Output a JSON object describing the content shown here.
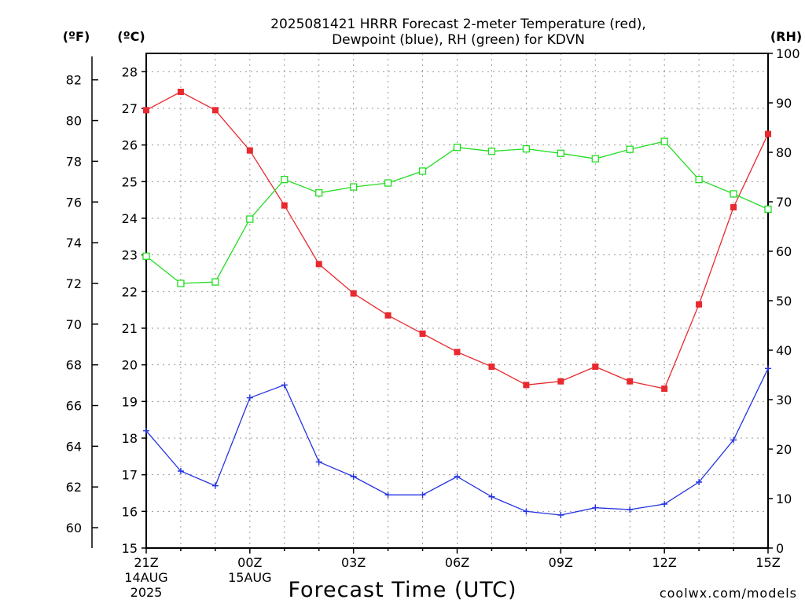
{
  "chart_data": {
    "type": "line",
    "title_line1": "2025081421 HRRR Forecast 2-meter Temperature (red),",
    "title_line2": "Dewpoint (blue), RH (green) for KDVN",
    "xlabel": "Forecast Time (UTC)",
    "ylabel_f": "(ºF)",
    "ylabel_c": "(ºC)",
    "ylabel_rh": "(RH)",
    "credit": "coolwx.com/models",
    "x_ticks": [
      {
        "i": 0,
        "line1": "21Z",
        "line2": "14AUG",
        "line3": "2025"
      },
      {
        "i": 3,
        "line1": "00Z",
        "line2": "15AUG",
        "line3": ""
      },
      {
        "i": 6,
        "line1": "03Z",
        "line2": "",
        "line3": ""
      },
      {
        "i": 9,
        "line1": "06Z",
        "line2": "",
        "line3": ""
      },
      {
        "i": 12,
        "line1": "09Z",
        "line2": "",
        "line3": ""
      },
      {
        "i": 15,
        "line1": "12Z",
        "line2": "",
        "line3": ""
      },
      {
        "i": 18,
        "line1": "15Z",
        "line2": "",
        "line3": ""
      }
    ],
    "x_count": 19,
    "ylim_c": [
      15,
      28.5
    ],
    "yticks_c": [
      "15",
      "16",
      "17",
      "18",
      "19",
      "20",
      "21",
      "22",
      "23",
      "24",
      "25",
      "26",
      "27",
      "28"
    ],
    "yticks_f": [
      "60",
      "62",
      "64",
      "66",
      "68",
      "70",
      "72",
      "74",
      "76",
      "78",
      "80",
      "82"
    ],
    "ylim_rh": [
      0,
      100
    ],
    "yticks_rh": [
      "0",
      "10",
      "20",
      "30",
      "40",
      "50",
      "60",
      "70",
      "80",
      "90",
      "100"
    ],
    "grid": true,
    "colors": {
      "temperature": "#e8292e",
      "dewpoint": "#2432e0",
      "rh": "#22dd22",
      "grid": "#9a9a9a",
      "credit": "#d11f1f"
    },
    "series": [
      {
        "key": "temperature",
        "axis": "c",
        "marker": "filled-square",
        "values": [
          26.95,
          27.45,
          26.95,
          25.85,
          24.35,
          22.75,
          21.95,
          21.35,
          20.85,
          20.35,
          19.95,
          19.45,
          19.55,
          19.95,
          19.55,
          19.35,
          21.65,
          24.3,
          26.3
        ]
      },
      {
        "key": "dewpoint",
        "axis": "c",
        "marker": "plus",
        "values": [
          18.2,
          17.1,
          16.7,
          19.1,
          19.45,
          17.35,
          16.95,
          16.45,
          16.45,
          16.95,
          16.4,
          16.0,
          15.9,
          16.1,
          16.05,
          16.2,
          16.8,
          17.95,
          19.9
        ]
      },
      {
        "key": "rh",
        "axis": "rh",
        "marker": "open-square",
        "values": [
          59,
          53.5,
          53.8,
          66.5,
          74.5,
          71.8,
          73,
          73.8,
          76.2,
          81,
          80.2,
          80.7,
          79.8,
          78.7,
          80.6,
          82.2,
          74.5,
          71.6,
          68.5
        ]
      }
    ]
  }
}
